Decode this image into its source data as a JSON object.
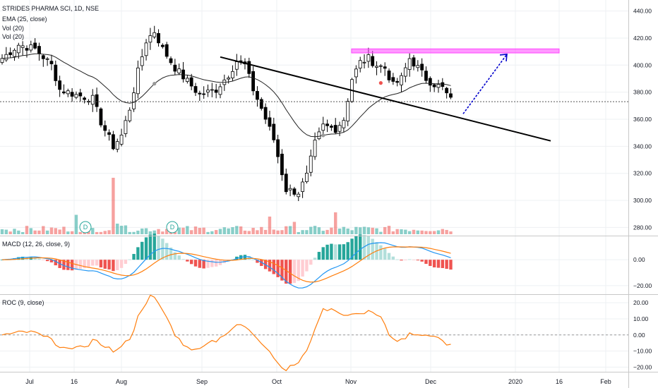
{
  "legend": {
    "symbol": "STRIDES PHARMA SCI, 1D, NSE",
    "ema": "EMA (25, close)",
    "vol1": "Vol (20)",
    "vol2": "Vol (20)",
    "macd": "MACD (12, 26, close, 9)",
    "roc": "ROC (9, close)"
  },
  "colors": {
    "up": "#26a69a",
    "down": "#ef5350",
    "ema": "#222222",
    "macd_line": "#2196f3",
    "signal_line": "#ff7f0e",
    "roc_line": "#ff7f0e",
    "pink_zone": "#ff44ff",
    "arrow": "#0000cc",
    "trend": "#000000"
  },
  "chart_data": [
    {
      "type": "candlestick",
      "title": "STRIDES PHARMA SCI, 1D, NSE",
      "x_ticks": [
        "Jul",
        "16",
        "Aug",
        "Sep",
        "Oct",
        "Nov",
        "Dec",
        "2020",
        "16",
        "Feb"
      ],
      "y_ticks": [
        "440.00",
        "420.00",
        "400.00",
        "380.00",
        "360.00",
        "340.00",
        "320.00",
        "300.00",
        "280.00"
      ],
      "ylim": [
        275,
        445
      ],
      "last_price": 373,
      "waypoints": [
        [
          0,
          405
        ],
        [
          4,
          415
        ],
        [
          8,
          412
        ],
        [
          12,
          400
        ],
        [
          14,
          382
        ],
        [
          18,
          378
        ],
        [
          22,
          375
        ],
        [
          24,
          358
        ],
        [
          27,
          340
        ],
        [
          29,
          348
        ],
        [
          31,
          368
        ],
        [
          33,
          395
        ],
        [
          35,
          418
        ],
        [
          37,
          425
        ],
        [
          39,
          412
        ],
        [
          42,
          398
        ],
        [
          45,
          388
        ],
        [
          48,
          378
        ],
        [
          52,
          382
        ],
        [
          55,
          393
        ],
        [
          57,
          403
        ],
        [
          59,
          400
        ],
        [
          61,
          382
        ],
        [
          63,
          368
        ],
        [
          66,
          345
        ],
        [
          69,
          308
        ],
        [
          72,
          306
        ],
        [
          74,
          318
        ],
        [
          76,
          342
        ],
        [
          78,
          355
        ],
        [
          81,
          353
        ],
        [
          83,
          360
        ],
        [
          85,
          390
        ],
        [
          87,
          402
        ],
        [
          89,
          405
        ],
        [
          91,
          400
        ],
        [
          93,
          398
        ],
        [
          95,
          385
        ],
        [
          97,
          390
        ],
        [
          99,
          405
        ],
        [
          101,
          398
        ],
        [
          103,
          390
        ],
        [
          105,
          386
        ],
        [
          107,
          383
        ],
        [
          109,
          374
        ]
      ],
      "ema_label": "EMA (25, close)",
      "volume_label": "Vol (20)",
      "volume_markers": [
        "D",
        "D"
      ],
      "annotations": [
        "resistance zone",
        "descending trendline",
        "projection arrow"
      ]
    },
    {
      "type": "line",
      "title": "MACD (12, 26, close, 9)",
      "y_ticks": [
        "0.00",
        "−20.00"
      ],
      "ylim": [
        -25,
        17
      ]
    },
    {
      "type": "line",
      "title": "ROC (9, close)",
      "y_ticks": [
        "20.00",
        "10.00",
        "0.00",
        "−10.00",
        "−20.00"
      ],
      "ylim": [
        -22,
        24
      ]
    }
  ]
}
